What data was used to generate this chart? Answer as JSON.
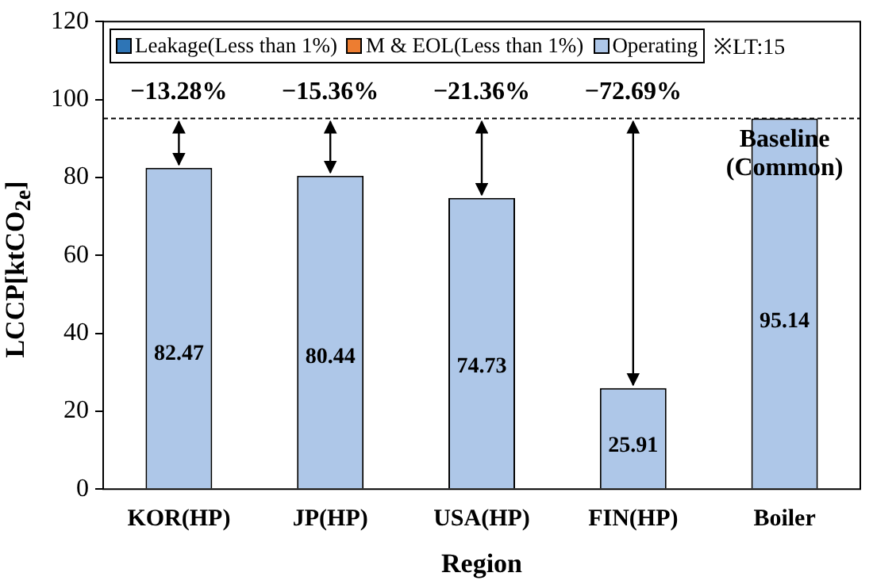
{
  "chart_data": {
    "type": "bar",
    "stacked": true,
    "xlabel": "Region",
    "ylabel": "LCCP[ktCO$_{2e}$]",
    "categories": [
      "KOR(HP)",
      "JP(HP)",
      "USA(HP)",
      "FIN(HP)",
      "Boiler"
    ],
    "series": [
      {
        "name": "Leakage(Less than 1%)",
        "color": "#2e75b6",
        "values": [
          null,
          null,
          null,
          null,
          null
        ]
      },
      {
        "name": "M & EOL(Less than 1%)",
        "color": "#ed7d31",
        "values": [
          null,
          null,
          null,
          null,
          null
        ]
      },
      {
        "name": "Operating",
        "color": "#aec7e8",
        "values": [
          82.47,
          80.44,
          74.73,
          25.91,
          95.14
        ]
      }
    ],
    "ylim": [
      0,
      120
    ],
    "yticks": [
      0,
      20,
      40,
      60,
      80,
      100,
      120
    ],
    "grid": false,
    "legend": "top",
    "data_labels": true,
    "ref_lines": [
      {
        "axis": "y",
        "value": 95.14,
        "line_style": "dashed",
        "color": "#000000"
      }
    ],
    "annotations": [
      "−13.28%",
      "−15.36%",
      "−21.36%",
      "−72.69%",
      "Baseline (Common)",
      "※LT:15"
    ]
  }
}
